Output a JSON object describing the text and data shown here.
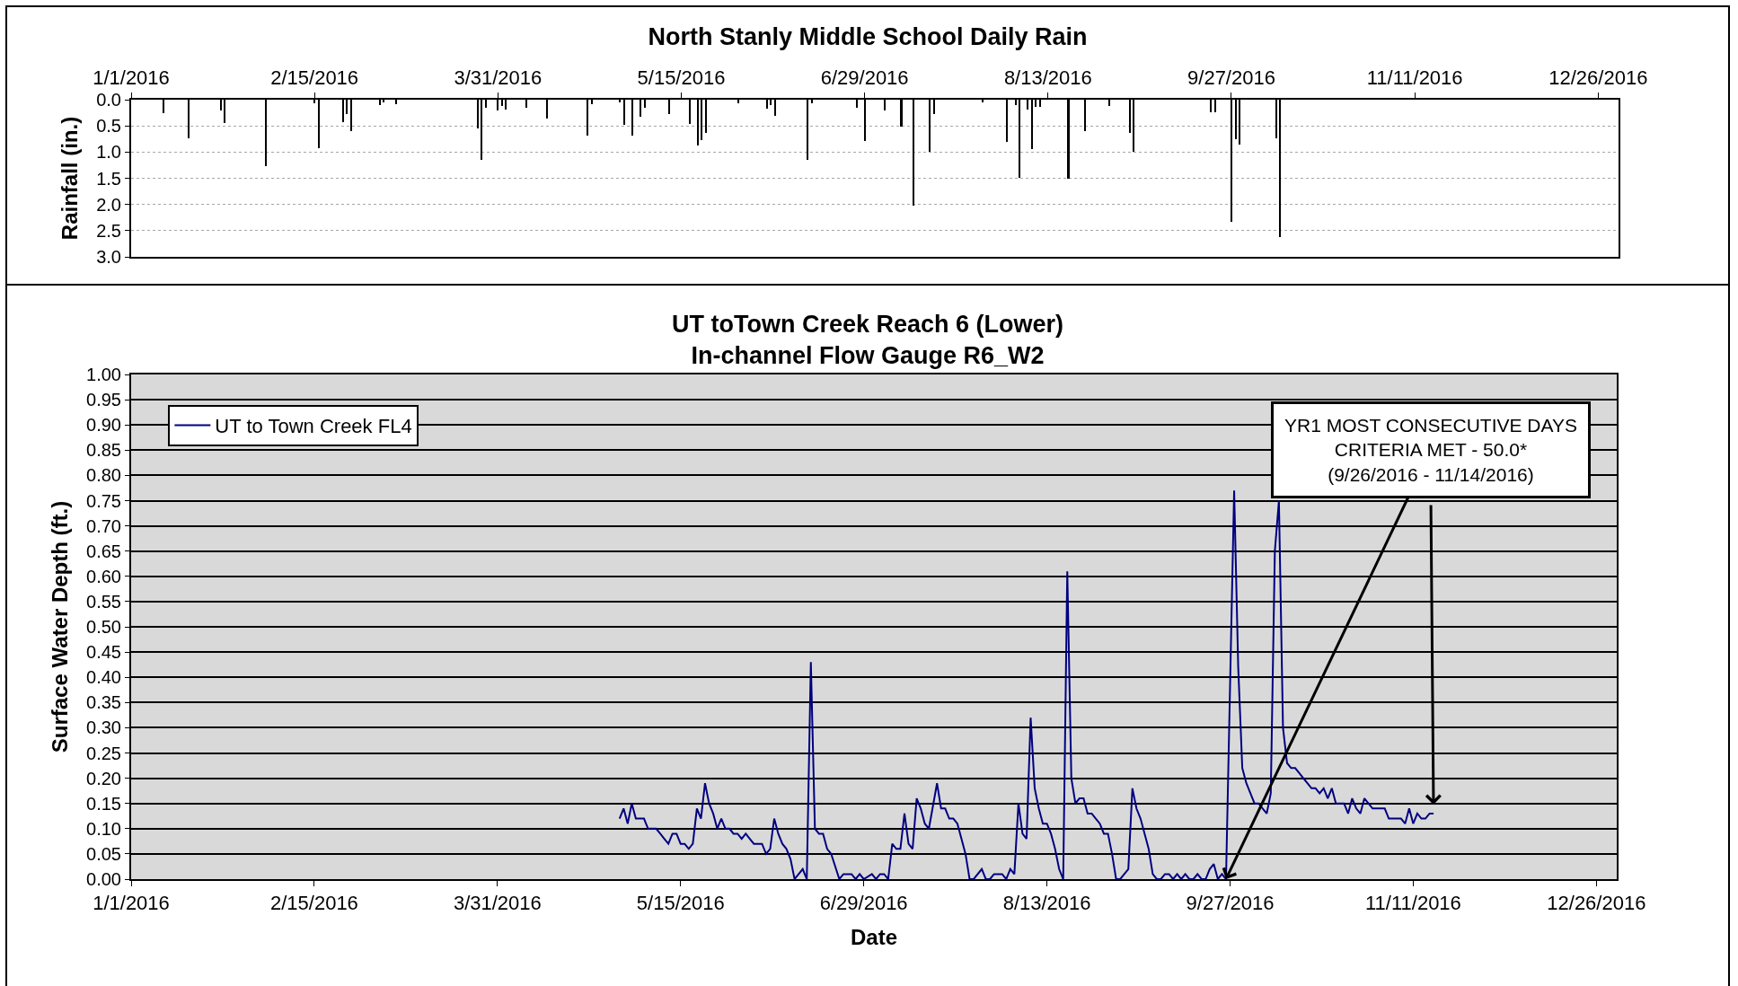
{
  "chart_data": [
    {
      "type": "bar",
      "title": "North Stanly Middle School Daily Rain",
      "ylabel": "Rainfall (in.)",
      "color": "#000000",
      "x": [
        "2016-01-09",
        "2016-01-15",
        "2016-01-23",
        "2016-01-24",
        "2016-02-03",
        "2016-02-15",
        "2016-02-16",
        "2016-02-22",
        "2016-02-23",
        "2016-02-24",
        "2016-03-02",
        "2016-03-03",
        "2016-03-06",
        "2016-03-26",
        "2016-03-27",
        "2016-03-28",
        "2016-03-31",
        "2016-04-01",
        "2016-04-02",
        "2016-04-07",
        "2016-04-12",
        "2016-04-22",
        "2016-04-23",
        "2016-04-30",
        "2016-05-01",
        "2016-05-03",
        "2016-05-05",
        "2016-05-06",
        "2016-05-12",
        "2016-05-17",
        "2016-05-19",
        "2016-05-20",
        "2016-05-21",
        "2016-05-29",
        "2016-06-05",
        "2016-06-06",
        "2016-06-07",
        "2016-06-15",
        "2016-06-16",
        "2016-06-27",
        "2016-06-29",
        "2016-07-04",
        "2016-07-08",
        "2016-07-11",
        "2016-07-15",
        "2016-07-16",
        "2016-07-28",
        "2016-08-03",
        "2016-08-05",
        "2016-08-06",
        "2016-08-08",
        "2016-08-09",
        "2016-08-10",
        "2016-08-11",
        "2016-08-18",
        "2016-08-22",
        "2016-08-28",
        "2016-09-02",
        "2016-09-03",
        "2016-09-22",
        "2016-09-23",
        "2016-09-27",
        "2016-09-28",
        "2016-09-29",
        "2016-10-08",
        "2016-10-09"
      ],
      "values": [
        0.25,
        0.74,
        0.2,
        0.44,
        1.27,
        0.06,
        0.92,
        0.43,
        0.28,
        0.6,
        0.1,
        0.05,
        0.08,
        0.54,
        1.15,
        0.15,
        0.2,
        0.12,
        0.18,
        0.15,
        0.36,
        0.69,
        0.08,
        0.05,
        0.48,
        0.68,
        0.33,
        0.15,
        0.27,
        0.47,
        0.88,
        0.77,
        0.64,
        0.06,
        0.17,
        0.1,
        0.3,
        1.15,
        0.07,
        0.15,
        0.78,
        0.2,
        0.51,
        2.02,
        0.99,
        0.27,
        0.05,
        0.8,
        0.1,
        1.49,
        0.18,
        0.95,
        0.13,
        0.13,
        1.5,
        0.6,
        0.12,
        0.64,
        0.99,
        0.24,
        0.24,
        2.33,
        0.76,
        0.85,
        0.74,
        2.63
      ],
      "xlim": [
        "2016-01-01",
        "2016-12-31"
      ],
      "xticks": [
        {
          "value": "2016-01-01",
          "label": "1/1/2016"
        },
        {
          "value": "2016-02-15",
          "label": "2/15/2016"
        },
        {
          "value": "2016-03-31",
          "label": "3/31/2016"
        },
        {
          "value": "2016-05-15",
          "label": "5/15/2016"
        },
        {
          "value": "2016-06-29",
          "label": "6/29/2016"
        },
        {
          "value": "2016-08-13",
          "label": "8/13/2016"
        },
        {
          "value": "2016-09-27",
          "label": "9/27/2016"
        },
        {
          "value": "2016-11-11",
          "label": "11/11/2016"
        },
        {
          "value": "2016-12-26",
          "label": "12/26/2016"
        }
      ],
      "ylim": [
        3,
        0
      ],
      "yticks": [
        {
          "value": 0,
          "label": "0.0"
        },
        0.5,
        {
          "value": 1,
          "label": "1.0"
        },
        1.5,
        {
          "value": 2,
          "label": "2.0"
        },
        2.5,
        {
          "value": 3,
          "label": "3.0"
        }
      ],
      "grid": "y"
    },
    {
      "type": "line",
      "title": "UT toTown Creek Reach 6 (Lower)\nIn-channel Flow Gauge R6_W2",
      "xlabel": "Date",
      "ylabel": "Surface Water Depth (ft.)",
      "legend": "top left",
      "series": [
        {
          "name": "UT to Town Creek FL4",
          "color": "#000080",
          "x": [
            "2016-04-30",
            "2016-05-01",
            "2016-05-02",
            "2016-05-03",
            "2016-05-04",
            "2016-05-06",
            "2016-05-07",
            "2016-05-08",
            "2016-05-09",
            "2016-05-10",
            "2016-05-11",
            "2016-05-12",
            "2016-05-13",
            "2016-05-14",
            "2016-05-15",
            "2016-05-16",
            "2016-05-17",
            "2016-05-18",
            "2016-05-19",
            "2016-05-20",
            "2016-05-21",
            "2016-05-22",
            "2016-05-23",
            "2016-05-24",
            "2016-05-25",
            "2016-05-26",
            "2016-05-27",
            "2016-05-28",
            "2016-05-29",
            "2016-05-30",
            "2016-05-31",
            "2016-06-01",
            "2016-06-02",
            "2016-06-03",
            "2016-06-04",
            "2016-06-05",
            "2016-06-06",
            "2016-06-07",
            "2016-06-08",
            "2016-06-09",
            "2016-06-10",
            "2016-06-11",
            "2016-06-12",
            "2016-06-13",
            "2016-06-14",
            "2016-06-15",
            "2016-06-16",
            "2016-06-17",
            "2016-06-18",
            "2016-06-19",
            "2016-06-20",
            "2016-06-21",
            "2016-06-23",
            "2016-06-24",
            "2016-06-26",
            "2016-06-27",
            "2016-06-28",
            "2016-06-29",
            "2016-07-01",
            "2016-07-02",
            "2016-07-03",
            "2016-07-04",
            "2016-07-05",
            "2016-07-06",
            "2016-07-07",
            "2016-07-08",
            "2016-07-09",
            "2016-07-10",
            "2016-07-11",
            "2016-07-12",
            "2016-07-13",
            "2016-07-14",
            "2016-07-15",
            "2016-07-17",
            "2016-07-18",
            "2016-07-19",
            "2016-07-20",
            "2016-07-21",
            "2016-07-22",
            "2016-07-23",
            "2016-07-24",
            "2016-07-25",
            "2016-07-26",
            "2016-07-28",
            "2016-07-29",
            "2016-07-30",
            "2016-07-31",
            "2016-08-01",
            "2016-08-02",
            "2016-08-03",
            "2016-08-04",
            "2016-08-05",
            "2016-08-06",
            "2016-08-07",
            "2016-08-08",
            "2016-08-09",
            "2016-08-10",
            "2016-08-11",
            "2016-08-12",
            "2016-08-13",
            "2016-08-14",
            "2016-08-15",
            "2016-08-16",
            "2016-08-17",
            "2016-08-18",
            "2016-08-19",
            "2016-08-20",
            "2016-08-21",
            "2016-08-22",
            "2016-08-23",
            "2016-08-24",
            "2016-08-25",
            "2016-08-26",
            "2016-08-27",
            "2016-08-28",
            "2016-08-29",
            "2016-08-30",
            "2016-08-31",
            "2016-09-01",
            "2016-09-02",
            "2016-09-03",
            "2016-09-04",
            "2016-09-05",
            "2016-09-06",
            "2016-09-07",
            "2016-09-08",
            "2016-09-09",
            "2016-09-10",
            "2016-09-11",
            "2016-09-12",
            "2016-09-13",
            "2016-09-14",
            "2016-09-15",
            "2016-09-16",
            "2016-09-17",
            "2016-09-18",
            "2016-09-19",
            "2016-09-20",
            "2016-09-21",
            "2016-09-22",
            "2016-09-23",
            "2016-09-24",
            "2016-09-25",
            "2016-09-26",
            "2016-09-28",
            "2016-09-29",
            "2016-09-30",
            "2016-10-01",
            "2016-10-02",
            "2016-10-03",
            "2016-10-04",
            "2016-10-05",
            "2016-10-06",
            "2016-10-07",
            "2016-10-08",
            "2016-10-09",
            "2016-10-10",
            "2016-10-11",
            "2016-10-12",
            "2016-10-13",
            "2016-10-14",
            "2016-10-15",
            "2016-10-16",
            "2016-10-17",
            "2016-10-18",
            "2016-10-19",
            "2016-10-20",
            "2016-10-21",
            "2016-10-22",
            "2016-10-23",
            "2016-10-24",
            "2016-10-25",
            "2016-10-26",
            "2016-10-27",
            "2016-10-28",
            "2016-10-29",
            "2016-10-30",
            "2016-10-31",
            "2016-11-01",
            "2016-11-02",
            "2016-11-03",
            "2016-11-04",
            "2016-11-05",
            "2016-11-06",
            "2016-11-07",
            "2016-11-08",
            "2016-11-09",
            "2016-11-10",
            "2016-11-11",
            "2016-11-12",
            "2016-11-13",
            "2016-11-14",
            "2016-11-15",
            "2016-11-16"
          ],
          "values": [
            0.12,
            0.14,
            0.11,
            0.15,
            0.12,
            0.12,
            0.1,
            0.1,
            0.1,
            0.09,
            0.08,
            0.07,
            0.09,
            0.09,
            0.07,
            0.07,
            0.06,
            0.07,
            0.14,
            0.12,
            0.19,
            0.15,
            0.13,
            0.1,
            0.12,
            0.1,
            0.1,
            0.09,
            0.09,
            0.08,
            0.09,
            0.08,
            0.07,
            0.07,
            0.07,
            0.05,
            0.06,
            0.12,
            0.09,
            0.07,
            0.06,
            0.04,
            0,
            0.01,
            0.02,
            0,
            0.43,
            0.1,
            0.09,
            0.09,
            0.06,
            0.05,
            0,
            0.01,
            0.01,
            0,
            0.01,
            0,
            0.01,
            0,
            0.01,
            0.01,
            0,
            0.07,
            0.06,
            0.06,
            0.13,
            0.07,
            0.06,
            0.16,
            0.14,
            0.11,
            0.1,
            0.19,
            0.14,
            0.14,
            0.12,
            0.12,
            0.11,
            0.08,
            0.05,
            0,
            0,
            0.02,
            0,
            0,
            0.01,
            0.01,
            0.01,
            0,
            0.02,
            0.01,
            0.15,
            0.09,
            0.08,
            0.32,
            0.18,
            0.14,
            0.11,
            0.11,
            0.09,
            0.06,
            0.02,
            0,
            0.61,
            0.2,
            0.15,
            0.16,
            0.16,
            0.13,
            0.13,
            0.12,
            0.11,
            0.09,
            0.09,
            0.05,
            0,
            0,
            0.01,
            0.02,
            0.18,
            0.14,
            0.12,
            0.09,
            0.06,
            0.01,
            0,
            0,
            0.01,
            0.01,
            0,
            0.01,
            0,
            0.01,
            0,
            0,
            0.01,
            0,
            0,
            0.02,
            0.03,
            0,
            0.01,
            0,
            0.77,
            0.42,
            0.22,
            0.19,
            0.17,
            0.15,
            0.15,
            0.14,
            0.13,
            0.17,
            0.65,
            0.75,
            0.3,
            0.23,
            0.22,
            0.22,
            0.21,
            0.2,
            0.19,
            0.18,
            0.18,
            0.17,
            0.18,
            0.16,
            0.18,
            0.15,
            0.15,
            0.15,
            0.13,
            0.16,
            0.14,
            0.13,
            0.16,
            0.15,
            0.14,
            0.14,
            0.14,
            0.14,
            0.12,
            0.12,
            0.12,
            0.12,
            0.11,
            0.14,
            0.11,
            0.13,
            0.12,
            0.12,
            0.13,
            0.13
          ]
        }
      ],
      "xlim": [
        "2016-01-01",
        "2016-12-31"
      ],
      "xticks": [
        {
          "value": "2016-01-01",
          "label": "1/1/2016"
        },
        {
          "value": "2016-02-15",
          "label": "2/15/2016"
        },
        {
          "value": "2016-03-31",
          "label": "3/31/2016"
        },
        {
          "value": "2016-05-15",
          "label": "5/15/2016"
        },
        {
          "value": "2016-06-29",
          "label": "6/29/2016"
        },
        {
          "value": "2016-08-13",
          "label": "8/13/2016"
        },
        {
          "value": "2016-09-27",
          "label": "9/27/2016"
        },
        {
          "value": "2016-11-11",
          "label": "11/11/2016"
        },
        {
          "value": "2016-12-26",
          "label": "12/26/2016"
        }
      ],
      "ylim": [
        0,
        1
      ],
      "yticks": [
        {
          "value": 0,
          "label": "0.00"
        },
        {
          "value": 0.05,
          "label": "0.05"
        },
        {
          "value": 0.1,
          "label": "0.10"
        },
        {
          "value": 0.15,
          "label": "0.15"
        },
        {
          "value": 0.2,
          "label": "0.20"
        },
        {
          "value": 0.25,
          "label": "0.25"
        },
        {
          "value": 0.3,
          "label": "0.30"
        },
        {
          "value": 0.35,
          "label": "0.35"
        },
        {
          "value": 0.4,
          "label": "0.40"
        },
        {
          "value": 0.45,
          "label": "0.45"
        },
        {
          "value": 0.5,
          "label": "0.50"
        },
        {
          "value": 0.55,
          "label": "0.55"
        },
        {
          "value": 0.6,
          "label": "0.60"
        },
        {
          "value": 0.65,
          "label": "0.65"
        },
        {
          "value": 0.7,
          "label": "0.70"
        },
        {
          "value": 0.75,
          "label": "0.75"
        },
        {
          "value": 0.8,
          "label": "0.80"
        },
        {
          "value": 0.85,
          "label": "0.85"
        },
        {
          "value": 0.9,
          "label": "0.90"
        },
        {
          "value": 0.95,
          "label": "0.95"
        },
        {
          "value": 1,
          "label": "1.00"
        }
      ],
      "grid": "y",
      "annotations": [
        {
          "text": "YR1 MOST CONSECUTIVE DAYS\nCRITERIA MET - 50.0*\n(9/26/2016 - 11/14/2016)",
          "x": "2016-09-26",
          "y": 0
        }
      ]
    }
  ]
}
